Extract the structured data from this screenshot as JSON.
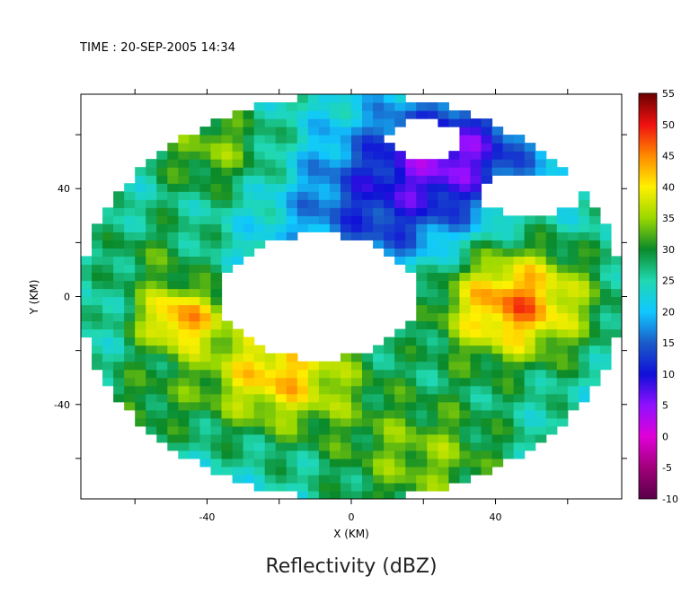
{
  "header": {
    "time_text": "TIME : 20-SEP-2005 14:34"
  },
  "chart_data": {
    "type": "heatmap",
    "title": "Reflectivity (dBZ)",
    "xlabel": "X (KM)",
    "ylabel": "Y (KM)",
    "xlim": [
      -75,
      75
    ],
    "ylim": [
      -75,
      75
    ],
    "x_ticks": [
      -40,
      0,
      40
    ],
    "y_ticks": [
      40,
      0,
      -40
    ],
    "colorbar": {
      "min": -10,
      "max": 55,
      "ticks": [
        55,
        50,
        45,
        40,
        35,
        30,
        25,
        20,
        15,
        10,
        5,
        0,
        -5,
        -10
      ],
      "stops": [
        {
          "v": -10,
          "c": "#5a0048"
        },
        {
          "v": -5,
          "c": "#a0007a"
        },
        {
          "v": 0,
          "c": "#e000d8"
        },
        {
          "v": 5,
          "c": "#9010ff"
        },
        {
          "v": 10,
          "c": "#1010d8"
        },
        {
          "v": 15,
          "c": "#1a5cc8"
        },
        {
          "v": 20,
          "c": "#10c8ff"
        },
        {
          "v": 25,
          "c": "#20d8b0"
        },
        {
          "v": 30,
          "c": "#0a8a2a"
        },
        {
          "v": 35,
          "c": "#9ad800"
        },
        {
          "v": 40,
          "c": "#fff000"
        },
        {
          "v": 45,
          "c": "#ff8a00"
        },
        {
          "v": 50,
          "c": "#f01010"
        },
        {
          "v": 55,
          "c": "#6a0000"
        }
      ]
    },
    "radar_range_km": 75,
    "field": {
      "base_dbz": 24,
      "features": [
        {
          "x": 45,
          "y": -2,
          "r": 22,
          "dbz": 22
        },
        {
          "x": -20,
          "y": -28,
          "r": 22,
          "dbz": 18
        },
        {
          "x": -48,
          "y": -8,
          "r": 12,
          "dbz": 18
        },
        {
          "x": -38,
          "y": 55,
          "r": 18,
          "dbz": 10
        },
        {
          "x": 10,
          "y": 35,
          "r": 28,
          "dbz": -12
        },
        {
          "x": 30,
          "y": 55,
          "r": 20,
          "dbz": -14
        },
        {
          "x": -55,
          "y": 15,
          "r": 16,
          "dbz": 6
        },
        {
          "x": 20,
          "y": -60,
          "r": 25,
          "dbz": 10
        },
        {
          "x": -60,
          "y": -40,
          "r": 18,
          "dbz": 6
        }
      ],
      "voids": [
        {
          "x": -9,
          "y": 0,
          "rx": 27,
          "ry": 23
        },
        {
          "x": 20,
          "y": 58,
          "rx": 10,
          "ry": 7
        },
        {
          "x": 50,
          "y": 38,
          "rx": 14,
          "ry": 8
        }
      ]
    }
  }
}
